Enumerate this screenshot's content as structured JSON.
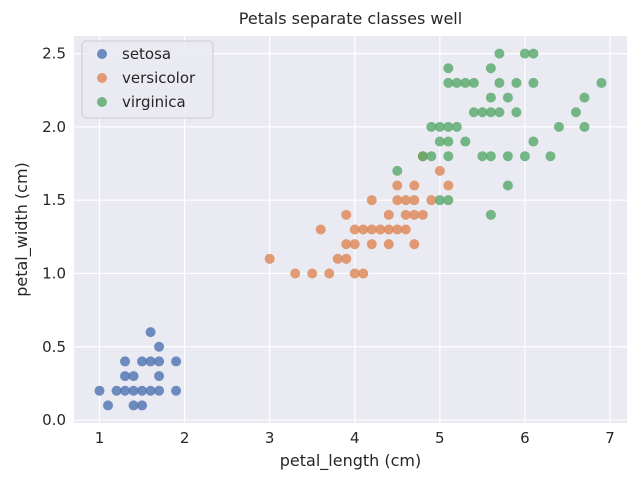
{
  "chart_data": {
    "type": "scatter",
    "title": "Petals separate classes well",
    "xlabel": "petal_length (cm)",
    "ylabel": "petal_width (cm)",
    "xlim": [
      0.7,
      7.2
    ],
    "ylim": [
      -0.02,
      2.62
    ],
    "xticks": [
      1,
      2,
      3,
      4,
      5,
      6,
      7
    ],
    "yticks": [
      0.0,
      0.5,
      1.0,
      1.5,
      2.0,
      2.5
    ],
    "xtick_labels": [
      "1",
      "2",
      "3",
      "4",
      "5",
      "6",
      "7"
    ],
    "ytick_labels": [
      "0.0",
      "0.5",
      "1.0",
      "1.5",
      "2.0",
      "2.5"
    ],
    "grid": true,
    "legend_position": "top-left",
    "background": "#eaeaf2",
    "series": [
      {
        "name": "setosa",
        "color": "#4c72b0",
        "points": [
          [
            1.0,
            0.2
          ],
          [
            1.1,
            0.1
          ],
          [
            1.2,
            0.2
          ],
          [
            1.3,
            0.2
          ],
          [
            1.3,
            0.3
          ],
          [
            1.3,
            0.4
          ],
          [
            1.4,
            0.1
          ],
          [
            1.4,
            0.2
          ],
          [
            1.4,
            0.3
          ],
          [
            1.5,
            0.1
          ],
          [
            1.5,
            0.2
          ],
          [
            1.5,
            0.4
          ],
          [
            1.6,
            0.2
          ],
          [
            1.6,
            0.4
          ],
          [
            1.6,
            0.6
          ],
          [
            1.7,
            0.2
          ],
          [
            1.7,
            0.3
          ],
          [
            1.7,
            0.4
          ],
          [
            1.7,
            0.5
          ],
          [
            1.9,
            0.2
          ],
          [
            1.9,
            0.4
          ]
        ]
      },
      {
        "name": "versicolor",
        "color": "#dd8452",
        "points": [
          [
            3.0,
            1.1
          ],
          [
            3.3,
            1.0
          ],
          [
            3.5,
            1.0
          ],
          [
            3.6,
            1.3
          ],
          [
            3.7,
            1.0
          ],
          [
            3.8,
            1.1
          ],
          [
            3.9,
            1.1
          ],
          [
            3.9,
            1.2
          ],
          [
            3.9,
            1.4
          ],
          [
            4.0,
            1.0
          ],
          [
            4.0,
            1.2
          ],
          [
            4.0,
            1.3
          ],
          [
            4.1,
            1.0
          ],
          [
            4.1,
            1.3
          ],
          [
            4.2,
            1.2
          ],
          [
            4.2,
            1.3
          ],
          [
            4.2,
            1.5
          ],
          [
            4.3,
            1.3
          ],
          [
            4.4,
            1.2
          ],
          [
            4.4,
            1.3
          ],
          [
            4.4,
            1.4
          ],
          [
            4.5,
            1.3
          ],
          [
            4.5,
            1.5
          ],
          [
            4.5,
            1.6
          ],
          [
            4.6,
            1.3
          ],
          [
            4.6,
            1.4
          ],
          [
            4.6,
            1.5
          ],
          [
            4.7,
            1.2
          ],
          [
            4.7,
            1.4
          ],
          [
            4.7,
            1.5
          ],
          [
            4.7,
            1.6
          ],
          [
            4.8,
            1.4
          ],
          [
            4.8,
            1.8
          ],
          [
            4.9,
            1.5
          ],
          [
            5.0,
            1.7
          ],
          [
            5.1,
            1.6
          ]
        ]
      },
      {
        "name": "virginica",
        "color": "#55a868",
        "points": [
          [
            4.5,
            1.7
          ],
          [
            4.8,
            1.8
          ],
          [
            4.9,
            1.8
          ],
          [
            4.9,
            2.0
          ],
          [
            5.0,
            1.5
          ],
          [
            5.0,
            1.9
          ],
          [
            5.0,
            2.0
          ],
          [
            5.1,
            1.5
          ],
          [
            5.1,
            1.8
          ],
          [
            5.1,
            1.9
          ],
          [
            5.1,
            2.0
          ],
          [
            5.1,
            2.3
          ],
          [
            5.1,
            2.4
          ],
          [
            5.2,
            2.0
          ],
          [
            5.2,
            2.3
          ],
          [
            5.3,
            1.9
          ],
          [
            5.3,
            2.3
          ],
          [
            5.4,
            2.1
          ],
          [
            5.4,
            2.3
          ],
          [
            5.5,
            1.8
          ],
          [
            5.5,
            2.1
          ],
          [
            5.6,
            1.4
          ],
          [
            5.6,
            1.8
          ],
          [
            5.6,
            2.1
          ],
          [
            5.6,
            2.2
          ],
          [
            5.6,
            2.4
          ],
          [
            5.7,
            2.1
          ],
          [
            5.7,
            2.3
          ],
          [
            5.7,
            2.5
          ],
          [
            5.8,
            1.6
          ],
          [
            5.8,
            1.8
          ],
          [
            5.8,
            2.2
          ],
          [
            5.9,
            2.1
          ],
          [
            5.9,
            2.3
          ],
          [
            6.0,
            1.8
          ],
          [
            6.0,
            2.5
          ],
          [
            6.1,
            1.9
          ],
          [
            6.1,
            2.3
          ],
          [
            6.1,
            2.5
          ],
          [
            6.3,
            1.8
          ],
          [
            6.4,
            2.0
          ],
          [
            6.6,
            2.1
          ],
          [
            6.7,
            2.0
          ],
          [
            6.7,
            2.2
          ],
          [
            6.9,
            2.3
          ]
        ]
      }
    ]
  }
}
